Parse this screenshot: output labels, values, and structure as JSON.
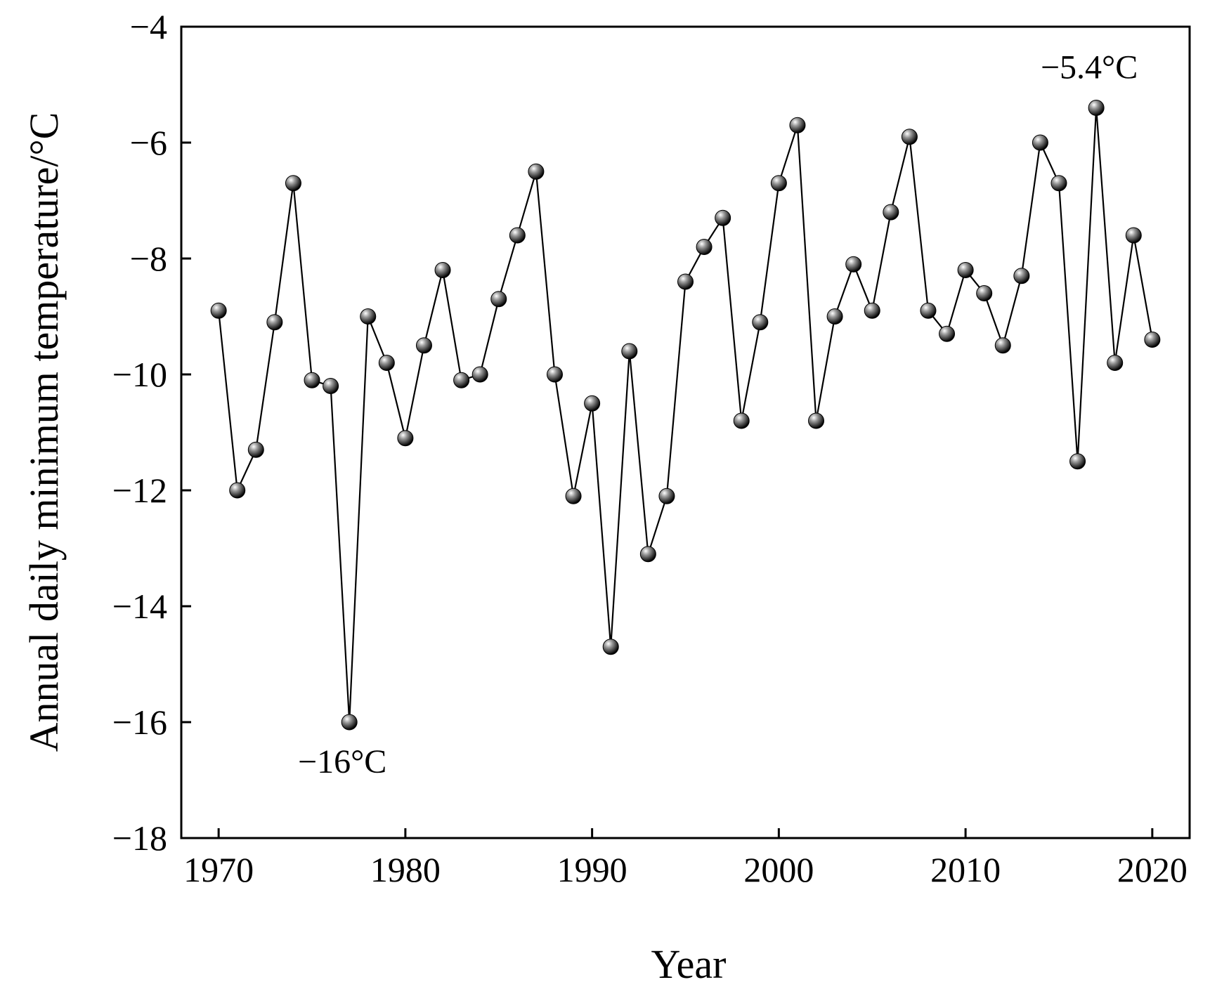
{
  "chart_data": {
    "type": "line",
    "title": "",
    "xlabel": "Year",
    "ylabel": "Annual daily minimum temperature/°C",
    "xlim": [
      1968,
      2022
    ],
    "ylim": [
      -18,
      -4
    ],
    "xticks": [
      1970,
      1980,
      1990,
      2000,
      2010,
      2020
    ],
    "xtick_labels": [
      "1970",
      "1980",
      "1990",
      "2000",
      "2010",
      "2020"
    ],
    "yticks": [
      -4,
      -6,
      -8,
      -10,
      -12,
      -14,
      -16,
      -18
    ],
    "ytick_labels": [
      "−4",
      "−6",
      "−8",
      "−10",
      "−12",
      "−14",
      "−16",
      "−18"
    ],
    "grid": false,
    "legend": "none",
    "marker": "sphere",
    "line_color": "#000000",
    "x": [
      1970,
      1971,
      1972,
      1973,
      1974,
      1975,
      1976,
      1977,
      1978,
      1979,
      1980,
      1981,
      1982,
      1983,
      1984,
      1985,
      1986,
      1987,
      1988,
      1989,
      1990,
      1991,
      1992,
      1993,
      1994,
      1995,
      1996,
      1997,
      1998,
      1999,
      2000,
      2001,
      2002,
      2003,
      2004,
      2005,
      2006,
      2007,
      2008,
      2009,
      2010,
      2011,
      2012,
      2013,
      2014,
      2015,
      2016,
      2017,
      2018,
      2019,
      2020
    ],
    "y": [
      -8.9,
      -12.0,
      -11.3,
      -9.1,
      -6.7,
      -10.1,
      -10.2,
      -16.0,
      -9.0,
      -9.8,
      -11.1,
      -9.5,
      -8.2,
      -10.1,
      -10.0,
      -8.7,
      -7.6,
      -6.5,
      -10.0,
      -12.1,
      -10.5,
      -14.7,
      -9.6,
      -13.1,
      -12.1,
      -8.4,
      -7.8,
      -7.3,
      -10.8,
      -9.1,
      -6.7,
      -5.7,
      -10.8,
      -9.0,
      -8.1,
      -8.9,
      -7.2,
      -5.9,
      -8.9,
      -9.3,
      -8.2,
      -8.6,
      -9.5,
      -8.3,
      -6.0,
      -6.7,
      -11.5,
      -5.4,
      -9.8,
      -7.6,
      -9.4
    ],
    "annotations": [
      {
        "text": "−16°C",
        "x": 1977,
        "y": -16.0,
        "position": "below"
      },
      {
        "text": "−5.4°C",
        "x": 2017,
        "y": -5.4,
        "position": "above"
      }
    ]
  }
}
